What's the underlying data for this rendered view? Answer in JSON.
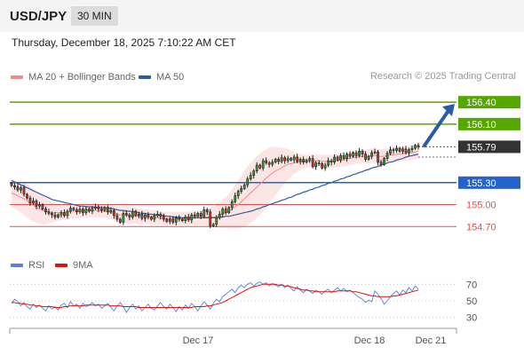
{
  "header": {
    "symbol": "USD/JPY",
    "timeframe": "30 MIN"
  },
  "timestamp": "Thursday, December 18, 2025 7:10:22 AM CET",
  "legend": {
    "ma20": {
      "label": "MA 20 + Bollinger Bands",
      "color": "#f08a8a"
    },
    "ma50": {
      "label": "MA 50",
      "color": "#2e5e9e"
    }
  },
  "credit": "Research © 2025 Trading Central",
  "rsi_legend": {
    "rsi": {
      "label": "RSI",
      "color": "#5b7fd4"
    },
    "ma9": {
      "label": "9MA",
      "color": "#e01010"
    }
  },
  "x_axis_labels": [
    "Dec 17",
    "Dec 18",
    "Dec 21"
  ],
  "chart_data": [
    {
      "type": "candlestick",
      "ylim": [
        154.4,
        156.62
      ],
      "current_price": 155.79,
      "levels": [
        {
          "label": "156.40",
          "value": 156.4,
          "color": "#56a800",
          "style": "resistance"
        },
        {
          "label": "156.10",
          "value": 156.1,
          "color": "#56a800",
          "style": "resistance"
        },
        {
          "label": "155.30",
          "value": 155.3,
          "color": "#2563c9",
          "style": "pivot"
        },
        {
          "label": "155.00",
          "value": 155.0,
          "color": "#e45050",
          "style": "support"
        },
        {
          "label": "154.70",
          "value": 154.7,
          "color": "#e45050",
          "style": "support"
        }
      ],
      "current_label": "155.79",
      "close": [
        155.26,
        155.24,
        155.2,
        155.23,
        155.14,
        155.09,
        155.02,
        155.05,
        154.98,
        155.0,
        154.94,
        154.9,
        154.88,
        154.86,
        154.83,
        154.86,
        154.89,
        154.85,
        154.91,
        154.95,
        154.93,
        154.9,
        154.94,
        154.89,
        154.94,
        154.91,
        154.95,
        154.97,
        154.94,
        154.92,
        154.96,
        154.9,
        154.92,
        154.85,
        154.8,
        154.76,
        154.88,
        154.86,
        154.83,
        154.91,
        154.85,
        154.87,
        154.81,
        154.86,
        154.83,
        154.8,
        154.85,
        154.87,
        154.84,
        154.8,
        154.77,
        154.8,
        154.76,
        154.82,
        154.8,
        154.78,
        154.83,
        154.79,
        154.86,
        154.84,
        154.88,
        154.84,
        154.93,
        154.9,
        154.71,
        154.73,
        154.82,
        154.87,
        154.94,
        154.89,
        154.96,
        155.04,
        155.12,
        155.18,
        155.22,
        155.27,
        155.35,
        155.4,
        155.46,
        155.54,
        155.5,
        155.6,
        155.57,
        155.55,
        155.58,
        155.62,
        155.59,
        155.64,
        155.6,
        155.63,
        155.61,
        155.65,
        155.59,
        155.62,
        155.58,
        155.61,
        155.63,
        155.52,
        155.57,
        155.56,
        155.5,
        155.54,
        155.6,
        155.58,
        155.65,
        155.61,
        155.67,
        155.63,
        155.69,
        155.66,
        155.71,
        155.67,
        155.73,
        155.69,
        155.62,
        155.66,
        155.71,
        155.72,
        155.58,
        155.55,
        155.63,
        155.7,
        155.75,
        155.74,
        155.77,
        155.73,
        155.76,
        155.71,
        155.75,
        155.77,
        155.81,
        155.79
      ],
      "ma20": [
        155.16,
        155.14,
        155.12,
        155.1,
        155.08,
        155.05,
        155.02,
        154.99,
        154.96,
        154.94,
        154.92,
        154.91,
        154.9,
        154.89,
        154.89,
        154.89,
        154.89,
        154.89,
        154.9,
        154.91,
        154.91,
        154.91,
        154.91,
        154.92,
        154.92,
        154.92,
        154.92,
        154.92,
        154.92,
        154.91,
        154.91,
        154.9,
        154.89,
        154.88,
        154.87,
        154.86,
        154.86,
        154.86,
        154.85,
        154.85,
        154.85,
        154.84,
        154.84,
        154.84,
        154.83,
        154.83,
        154.83,
        154.82,
        154.82,
        154.81,
        154.81,
        154.81,
        154.81,
        154.81,
        154.81,
        154.81,
        154.81,
        154.81,
        154.82,
        154.82,
        154.82,
        154.82,
        154.83,
        154.83,
        154.83,
        154.83,
        154.84,
        154.85,
        154.87,
        154.89,
        154.91,
        154.94,
        154.97,
        155.0,
        155.04,
        155.08,
        155.12,
        155.16,
        155.2,
        155.24,
        155.28,
        155.32,
        155.36,
        155.4,
        155.43,
        155.46,
        155.48,
        155.51,
        155.53,
        155.55,
        155.56,
        155.57,
        155.58,
        155.58,
        155.59,
        155.59,
        155.6,
        155.6,
        155.6,
        155.6,
        155.59,
        155.59,
        155.59,
        155.59,
        155.6,
        155.6,
        155.61,
        155.61,
        155.62,
        155.63,
        155.64,
        155.65,
        155.65,
        155.66,
        155.66,
        155.66,
        155.67,
        155.67,
        155.66,
        155.66,
        155.66,
        155.67,
        155.68,
        155.68,
        155.69,
        155.69,
        155.7,
        155.7,
        155.7,
        155.71,
        155.72,
        155.73
      ],
      "ma50": [
        155.33,
        155.31,
        155.29,
        155.27,
        155.25,
        155.23,
        155.21,
        155.19,
        155.17,
        155.15,
        155.13,
        155.11,
        155.09,
        155.07,
        155.06,
        155.05,
        155.04,
        155.03,
        155.02,
        155.01,
        155.0,
        154.99,
        154.98,
        154.98,
        154.97,
        154.97,
        154.97,
        154.96,
        154.96,
        154.96,
        154.96,
        154.95,
        154.95,
        154.94,
        154.93,
        154.92,
        154.92,
        154.91,
        154.91,
        154.9,
        154.9,
        154.89,
        154.88,
        154.88,
        154.87,
        154.87,
        154.86,
        154.86,
        154.85,
        154.85,
        154.84,
        154.84,
        154.83,
        154.83,
        154.83,
        154.82,
        154.82,
        154.82,
        154.82,
        154.82,
        154.82,
        154.82,
        154.82,
        154.82,
        154.82,
        154.82,
        154.82,
        154.83,
        154.83,
        154.84,
        154.84,
        154.85,
        154.86,
        154.87,
        154.88,
        154.89,
        154.9,
        154.91,
        154.92,
        154.94,
        154.95,
        154.97,
        154.98,
        155.0,
        155.01,
        155.03,
        155.04,
        155.06,
        155.07,
        155.09,
        155.1,
        155.12,
        155.14,
        155.15,
        155.17,
        155.18,
        155.2,
        155.21,
        155.23,
        155.24,
        155.26,
        155.27,
        155.29,
        155.3,
        155.32,
        155.33,
        155.35,
        155.36,
        155.38,
        155.39,
        155.41,
        155.42,
        155.44,
        155.45,
        155.47,
        155.48,
        155.5,
        155.51,
        155.52,
        155.54,
        155.55,
        155.57,
        155.58,
        155.59,
        155.61,
        155.62,
        155.63,
        155.65,
        155.66,
        155.67,
        155.68,
        155.69
      ],
      "bb_width": [
        0.18,
        0.19,
        0.2,
        0.21,
        0.22,
        0.23,
        0.23,
        0.22,
        0.21,
        0.2,
        0.19,
        0.18,
        0.16,
        0.14,
        0.12,
        0.11,
        0.1,
        0.1,
        0.1,
        0.1,
        0.1,
        0.1,
        0.1,
        0.1,
        0.1,
        0.09,
        0.09,
        0.09,
        0.09,
        0.09,
        0.09,
        0.09,
        0.09,
        0.1,
        0.11,
        0.12,
        0.12,
        0.12,
        0.12,
        0.11,
        0.11,
        0.11,
        0.11,
        0.1,
        0.1,
        0.1,
        0.1,
        0.1,
        0.09,
        0.09,
        0.09,
        0.09,
        0.09,
        0.09,
        0.09,
        0.09,
        0.09,
        0.09,
        0.09,
        0.1,
        0.1,
        0.1,
        0.11,
        0.12,
        0.13,
        0.14,
        0.15,
        0.17,
        0.19,
        0.21,
        0.24,
        0.27,
        0.3,
        0.33,
        0.36,
        0.38,
        0.4,
        0.41,
        0.42,
        0.42,
        0.42,
        0.41,
        0.4,
        0.38,
        0.36,
        0.33,
        0.3,
        0.27,
        0.24,
        0.21,
        0.18,
        0.15,
        0.13,
        0.11,
        0.1,
        0.09,
        0.09,
        0.09,
        0.09,
        0.09,
        0.09,
        0.09,
        0.09,
        0.09,
        0.09,
        0.09,
        0.09,
        0.09,
        0.09,
        0.09,
        0.09,
        0.09,
        0.09,
        0.09,
        0.09,
        0.1,
        0.1,
        0.1,
        0.1,
        0.1,
        0.1,
        0.1,
        0.1,
        0.1,
        0.1,
        0.1,
        0.1,
        0.1,
        0.1,
        0.1,
        0.1,
        0.1
      ]
    },
    {
      "type": "line",
      "ylim": [
        20,
        80
      ],
      "y_ticks": [
        70,
        50,
        30
      ],
      "rsi": [
        47,
        52,
        49,
        44,
        48,
        43,
        40,
        46,
        42,
        45,
        41,
        38,
        44,
        40,
        43,
        39,
        45,
        47,
        42,
        49,
        44,
        46,
        41,
        47,
        43,
        45,
        48,
        44,
        46,
        41,
        44,
        47,
        42,
        38,
        44,
        48,
        43,
        36,
        42,
        46,
        40,
        44,
        38,
        42,
        46,
        41,
        39,
        44,
        48,
        43,
        40,
        46,
        42,
        37,
        43,
        39,
        45,
        41,
        47,
        43,
        38,
        44,
        49,
        45,
        40,
        47,
        52,
        49,
        55,
        58,
        61,
        64,
        60,
        66,
        69,
        66,
        70,
        72,
        68,
        71,
        73,
        70,
        72,
        68,
        71,
        69,
        67,
        70,
        66,
        69,
        65,
        62,
        67,
        63,
        60,
        64,
        62,
        59,
        63,
        61,
        58,
        62,
        64,
        60,
        63,
        66,
        62,
        65,
        61,
        63,
        60,
        57,
        54,
        52,
        48,
        51,
        49,
        62,
        58,
        53,
        46,
        50,
        55,
        59,
        62,
        57,
        63,
        60,
        66,
        62,
        68,
        64
      ],
      "ma9": [
        48,
        48,
        47,
        47,
        46,
        46,
        45,
        45,
        44,
        44,
        43,
        43,
        43,
        43,
        42,
        42,
        42,
        43,
        43,
        44,
        44,
        44,
        44,
        44,
        45,
        45,
        45,
        45,
        45,
        45,
        45,
        45,
        44,
        44,
        44,
        44,
        43,
        43,
        43,
        43,
        43,
        42,
        42,
        42,
        42,
        42,
        42,
        42,
        42,
        42,
        42,
        42,
        42,
        42,
        42,
        42,
        42,
        42,
        42,
        43,
        43,
        43,
        43,
        44,
        44,
        45,
        46,
        47,
        48,
        50,
        52,
        54,
        56,
        58,
        60,
        62,
        64,
        66,
        67,
        68,
        69,
        70,
        70,
        70,
        70,
        70,
        69,
        69,
        68,
        68,
        67,
        66,
        65,
        64,
        63,
        63,
        62,
        62,
        61,
        61,
        61,
        61,
        61,
        61,
        61,
        62,
        62,
        62,
        62,
        62,
        61,
        61,
        60,
        59,
        58,
        57,
        56,
        56,
        55,
        55,
        55,
        55,
        55,
        56,
        56,
        57,
        58,
        59,
        60,
        61,
        62,
        63
      ]
    }
  ]
}
